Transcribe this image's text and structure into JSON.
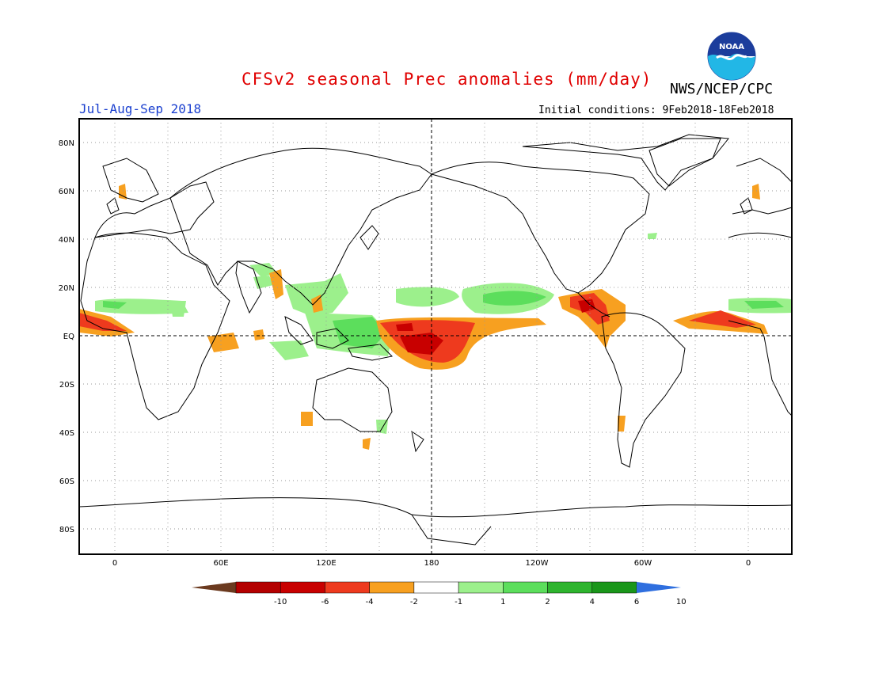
{
  "title": "CFSv2 seasonal Prec anomalies (mm/day)",
  "agency": "NWS/NCEP/CPC",
  "logo_text": "NOAA",
  "period": "Jul-Aug-Sep 2018",
  "initial_conditions": "Initial conditions: 9Feb2018-18Feb2018",
  "colors": {
    "title": "#e00000",
    "period": "#1a3fcf",
    "coast": "#000000",
    "grid": "#888888"
  },
  "lat_labels": [
    "80N",
    "60N",
    "40N",
    "20N",
    "EQ",
    "20S",
    "40S",
    "60S",
    "80S"
  ],
  "lon_labels": [
    "0",
    "60E",
    "120E",
    "180",
    "120W",
    "60W",
    "0"
  ],
  "colorbar": {
    "labels": [
      "-10",
      "-6",
      "-4",
      "-2",
      "-1",
      "1",
      "2",
      "4",
      "6",
      "10"
    ],
    "colors": [
      "#6b3a1f",
      "#b40000",
      "#c80000",
      "#ee3a1e",
      "#f7a020",
      "#ffffff",
      "#9cf08c",
      "#5cde5c",
      "#2eb42e",
      "#1a961a",
      "#2f6fdf"
    ]
  }
}
